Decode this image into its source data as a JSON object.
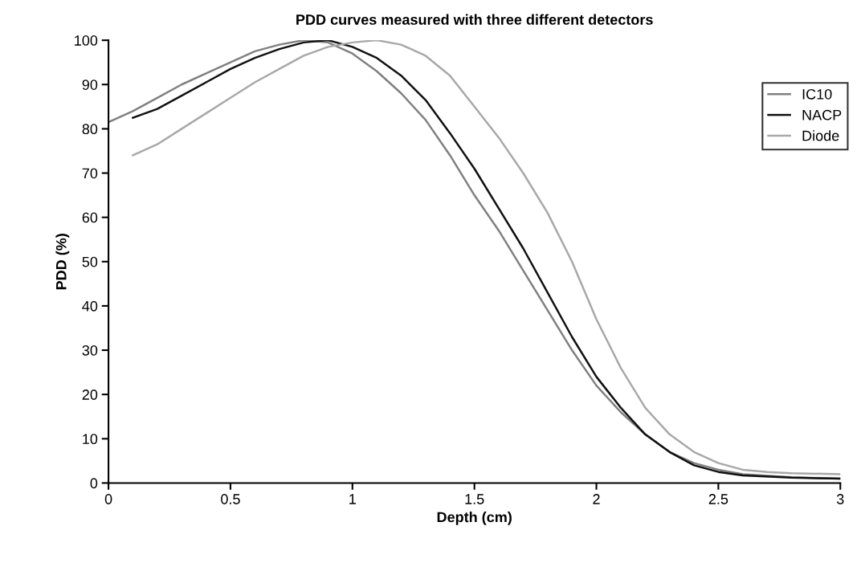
{
  "chart_data": {
    "type": "line",
    "title": "PDD curves measured with three different detectors",
    "xlabel": "Depth (cm)",
    "ylabel": "PDD (%)",
    "xlim": [
      0,
      3
    ],
    "xticks": [
      0,
      0.5,
      1,
      1.5,
      2,
      2.5,
      3
    ],
    "ylim": [
      0,
      100
    ],
    "yticks": [
      0,
      10,
      20,
      30,
      40,
      50,
      60,
      70,
      80,
      90,
      100
    ],
    "grid": false,
    "legend": "top right",
    "marker": "none",
    "line_style": "solid",
    "series": [
      {
        "name": "IC10",
        "color": "#808080",
        "x": [
          0,
          0.1,
          0.2,
          0.3,
          0.4,
          0.5,
          0.6,
          0.7,
          0.8,
          0.9,
          1.0,
          1.1,
          1.2,
          1.3,
          1.4,
          1.5,
          1.6,
          1.7,
          1.8,
          1.9,
          2.0,
          2.1,
          2.2,
          2.3,
          2.4,
          2.5,
          2.6,
          2.8,
          3.0
        ],
        "values": [
          81.5,
          84,
          87,
          90,
          92.5,
          95,
          97.5,
          99,
          100,
          99.5,
          97,
          93,
          88,
          82,
          74,
          65,
          57,
          48,
          39,
          30,
          22,
          16,
          11,
          7,
          4.5,
          3,
          2,
          1.3,
          1
        ]
      },
      {
        "name": "NACP",
        "color": "#111111",
        "x": [
          0.1,
          0.2,
          0.3,
          0.4,
          0.5,
          0.6,
          0.7,
          0.8,
          0.9,
          1.0,
          1.1,
          1.2,
          1.3,
          1.4,
          1.5,
          1.6,
          1.7,
          1.8,
          1.9,
          2.0,
          2.1,
          2.2,
          2.3,
          2.4,
          2.5,
          2.6,
          2.8,
          3.0
        ],
        "values": [
          82.5,
          84.5,
          87.5,
          90.5,
          93.5,
          96,
          98,
          99.5,
          100,
          98.5,
          96,
          92,
          86.5,
          79,
          71,
          62,
          53,
          43,
          33,
          24,
          17,
          11,
          7,
          4,
          2.5,
          1.7,
          1.2,
          1
        ]
      },
      {
        "name": "Diode",
        "color": "#a8a8a8",
        "x": [
          0.1,
          0.2,
          0.3,
          0.4,
          0.5,
          0.6,
          0.7,
          0.8,
          0.9,
          1.0,
          1.1,
          1.2,
          1.3,
          1.4,
          1.5,
          1.6,
          1.7,
          1.8,
          1.9,
          2.0,
          2.1,
          2.2,
          2.3,
          2.4,
          2.5,
          2.6,
          2.7,
          2.8,
          3.0
        ],
        "values": [
          74,
          76.5,
          80,
          83.5,
          87,
          90.5,
          93.5,
          96.5,
          98.5,
          99.5,
          100,
          99,
          96.5,
          92,
          85,
          78,
          70,
          61,
          50,
          37,
          26,
          17,
          11,
          7,
          4.5,
          3,
          2.5,
          2.2,
          2
        ]
      }
    ]
  }
}
